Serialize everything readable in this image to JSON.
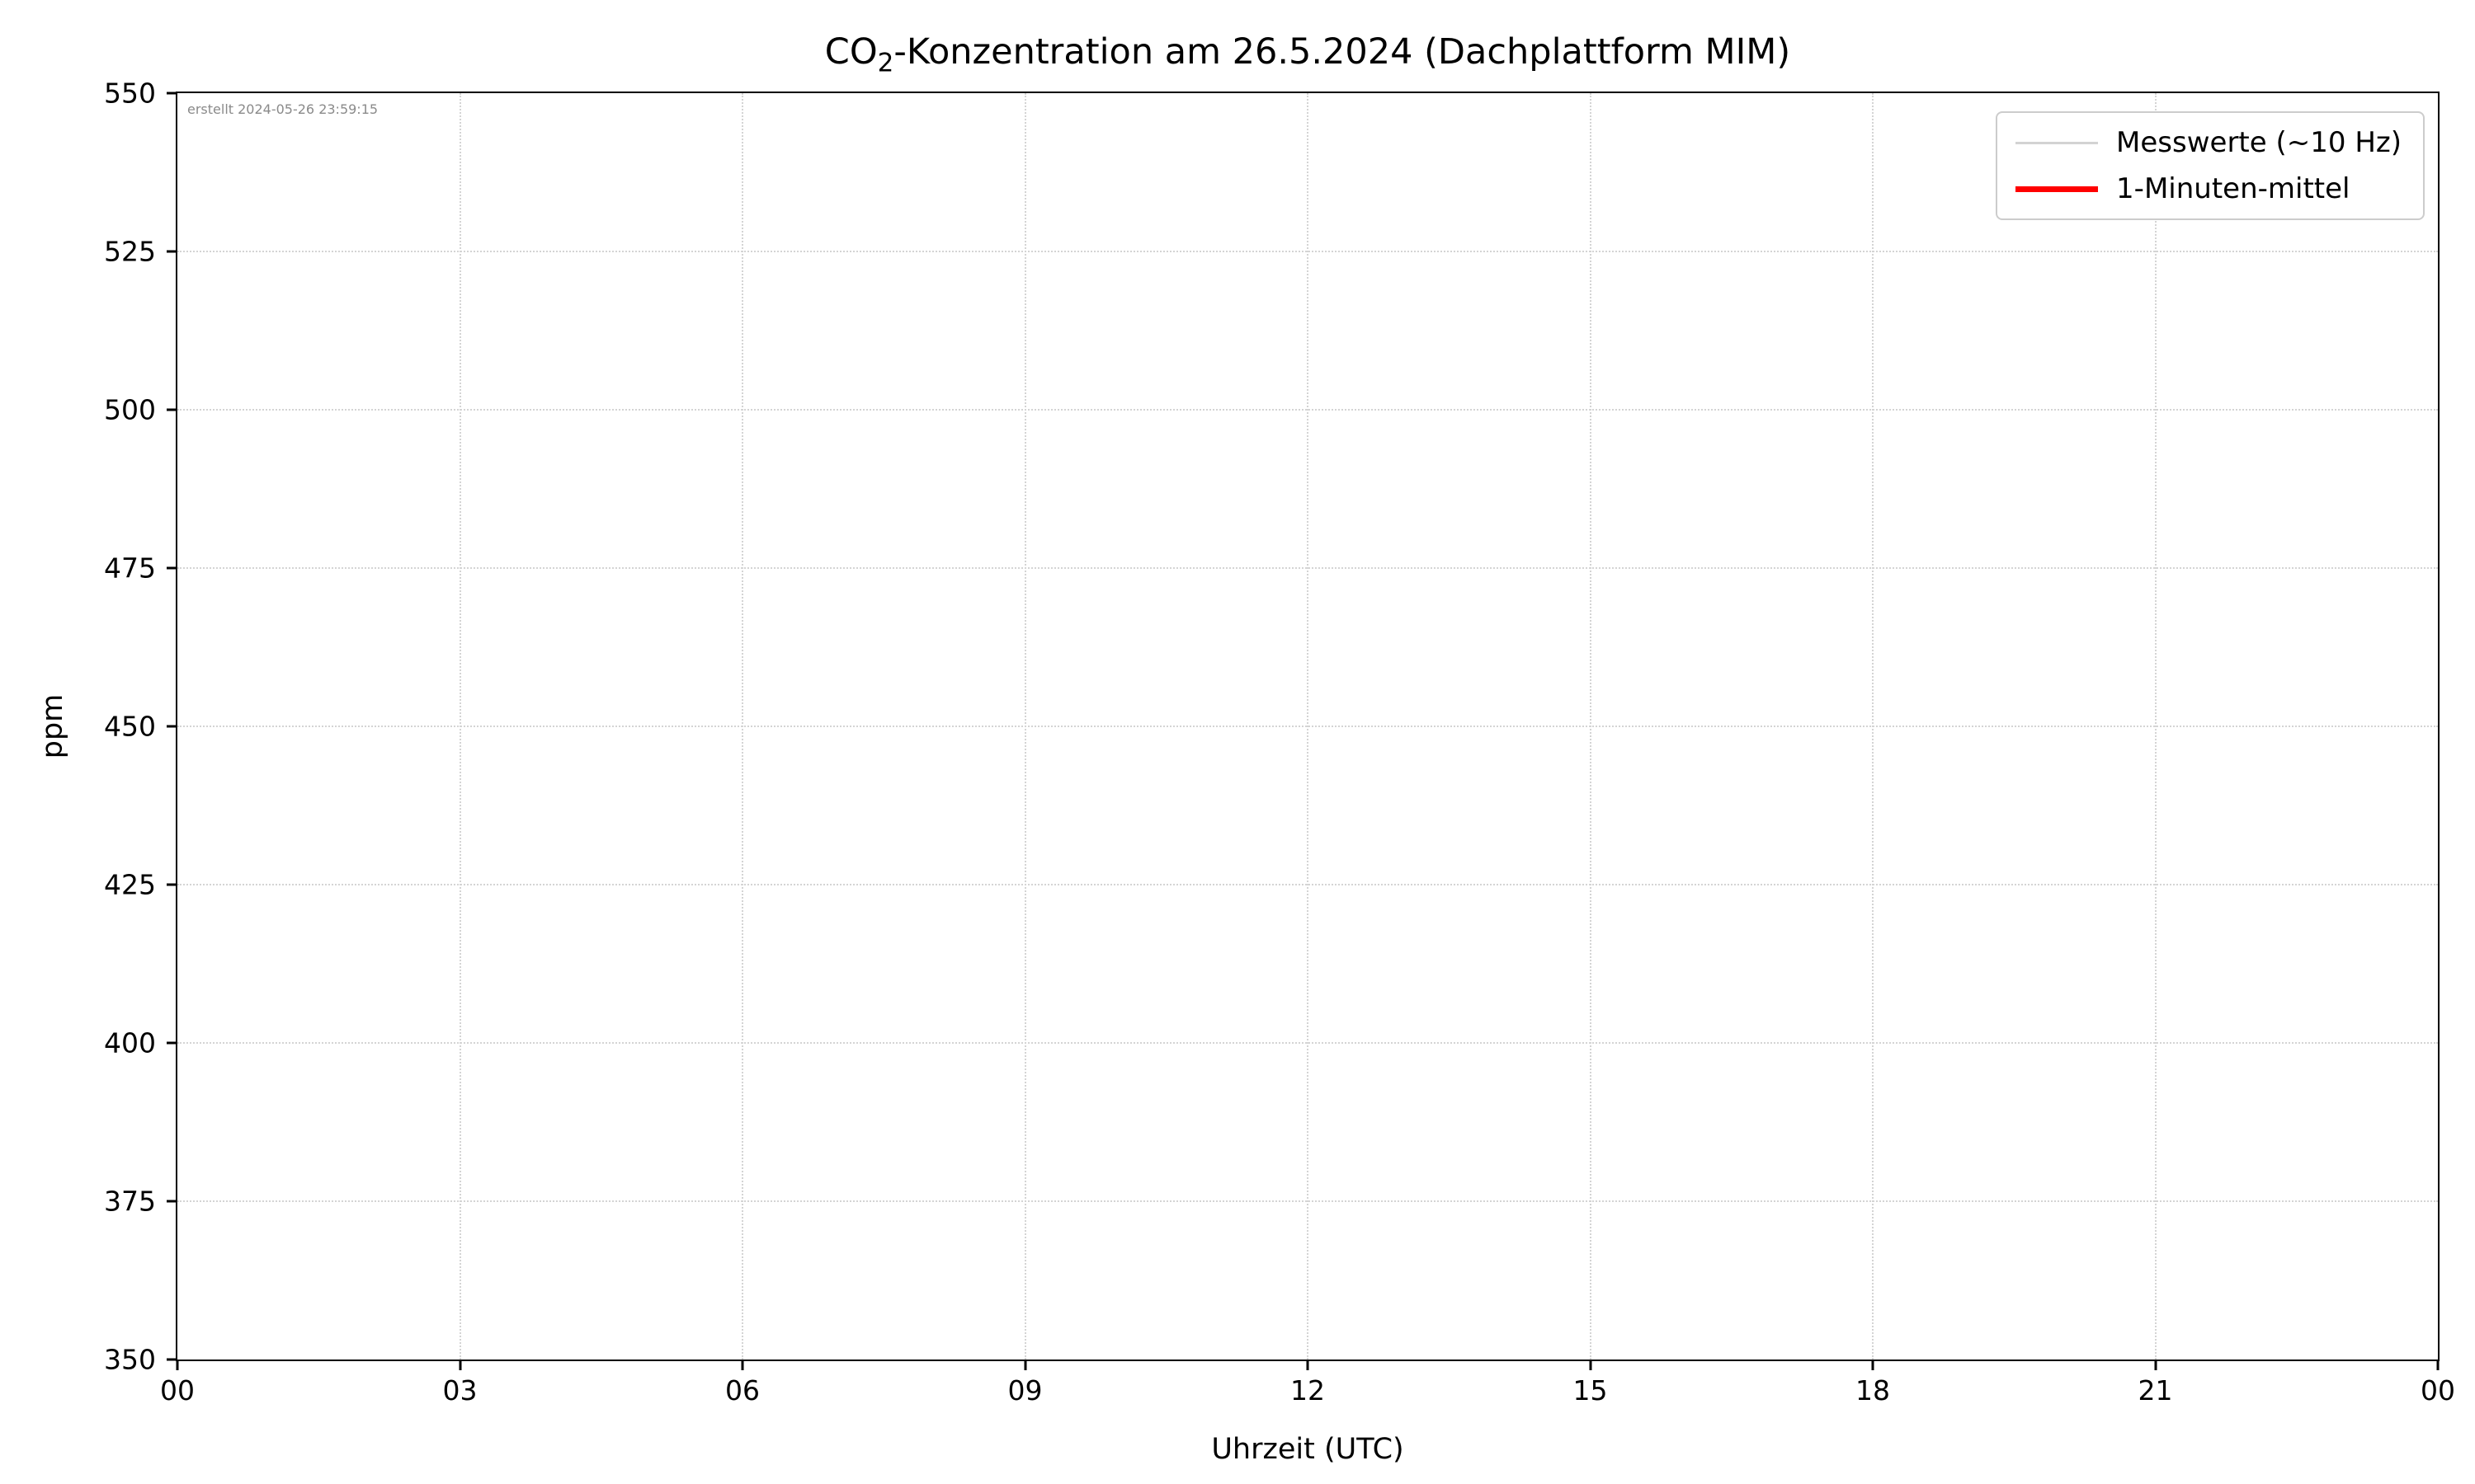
{
  "chart_data": {
    "type": "line",
    "title": "CO₂-Konzentration am 26.5.2024 (Dachplattform MIM)",
    "title_prefix": "CO",
    "title_subscript": "2",
    "title_suffix": "-Konzentration am 26.5.2024 (Dachplattform MIM)",
    "xlabel": "Uhrzeit (UTC)",
    "ylabel": "ppm",
    "x_ticks": [
      "00",
      "03",
      "06",
      "09",
      "12",
      "15",
      "18",
      "21",
      "00"
    ],
    "y_ticks": [
      350,
      375,
      400,
      425,
      450,
      475,
      500,
      525,
      550
    ],
    "ylim": [
      350,
      550
    ],
    "grid": {
      "style": "dotted",
      "color": "#d4d4d4"
    },
    "legend": {
      "position": "upper right",
      "entries": [
        {
          "label": "Messwerte (~10 Hz)",
          "color": "#d3d3d3",
          "weight": "thin"
        },
        {
          "label": "1-Minuten-mittel",
          "color": "#ff0000",
          "weight": "thick"
        }
      ]
    },
    "series": [
      {
        "name": "Messwerte (~10 Hz)",
        "color": "#d3d3d3",
        "x": [],
        "values": []
      },
      {
        "name": "1-Minuten-mittel",
        "color": "#ff0000",
        "x": [],
        "values": []
      }
    ],
    "annotation": "erstellt 2024-05-26 23:59:15"
  }
}
